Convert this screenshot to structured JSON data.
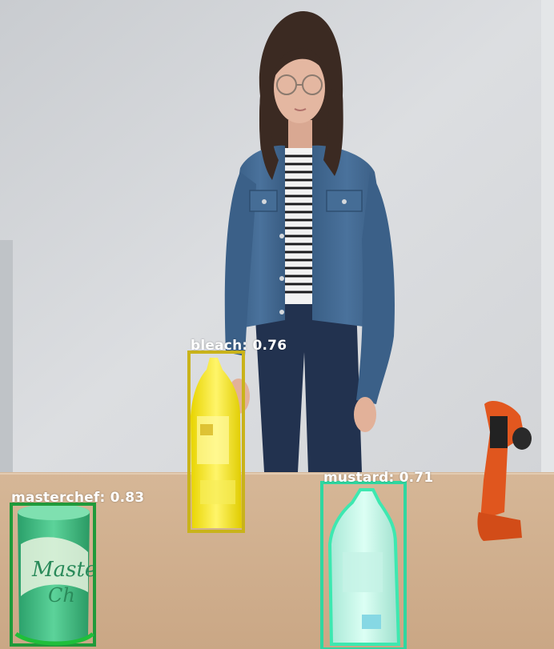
{
  "detections": [
    {
      "label": "bleach: 0.76",
      "class": "bleach",
      "score": 0.76,
      "color": "#f2e61a"
    },
    {
      "label": "masterchef: 0.83",
      "class": "masterchef",
      "score": 0.83,
      "color": "#22c24a"
    },
    {
      "label": "mustard: 0.71",
      "class": "mustard",
      "score": 0.71,
      "color": "#36e6b8"
    }
  ]
}
